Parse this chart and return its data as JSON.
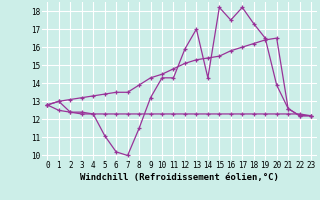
{
  "line1_x": [
    0,
    1,
    2,
    3,
    4,
    5,
    6,
    7,
    8,
    9,
    10,
    11,
    12,
    13,
    14,
    15,
    16,
    17,
    18,
    19,
    20,
    21,
    22,
    23
  ],
  "line1_y": [
    12.8,
    13.0,
    12.4,
    12.3,
    12.3,
    11.1,
    10.2,
    10.0,
    11.5,
    13.2,
    14.3,
    14.3,
    15.9,
    17.0,
    14.3,
    18.2,
    17.5,
    18.2,
    17.3,
    16.5,
    13.9,
    12.6,
    12.2,
    12.2
  ],
  "line2_x": [
    0,
    1,
    2,
    3,
    4,
    5,
    6,
    7,
    8,
    9,
    10,
    11,
    12,
    13,
    14,
    15,
    16,
    17,
    18,
    19,
    20,
    21,
    22,
    23
  ],
  "line2_y": [
    12.8,
    12.5,
    12.4,
    12.4,
    12.3,
    12.3,
    12.3,
    12.3,
    12.3,
    12.3,
    12.3,
    12.3,
    12.3,
    12.3,
    12.3,
    12.3,
    12.3,
    12.3,
    12.3,
    12.3,
    12.3,
    12.3,
    12.3,
    12.2
  ],
  "line3_x": [
    0,
    1,
    2,
    3,
    4,
    5,
    6,
    7,
    8,
    9,
    10,
    11,
    12,
    13,
    14,
    15,
    16,
    17,
    18,
    19,
    20,
    21,
    22,
    23
  ],
  "line3_y": [
    12.8,
    13.0,
    13.1,
    13.2,
    13.3,
    13.4,
    13.5,
    13.5,
    13.9,
    14.3,
    14.5,
    14.8,
    15.1,
    15.3,
    15.4,
    15.5,
    15.8,
    16.0,
    16.2,
    16.4,
    16.5,
    12.6,
    12.2,
    12.2
  ],
  "color": "#993399",
  "bg_color": "#cceee8",
  "grid_color": "#b8ddd8",
  "xlabel": "Windchill (Refroidissement éolien,°C)",
  "xlabel_fontsize": 6.5,
  "tick_fontsize": 5.5,
  "xlim": [
    -0.5,
    23.5
  ],
  "ylim": [
    9.75,
    18.5
  ],
  "yticks": [
    10,
    11,
    12,
    13,
    14,
    15,
    16,
    17,
    18
  ],
  "xticks": [
    0,
    1,
    2,
    3,
    4,
    5,
    6,
    7,
    8,
    9,
    10,
    11,
    12,
    13,
    14,
    15,
    16,
    17,
    18,
    19,
    20,
    21,
    22,
    23
  ]
}
